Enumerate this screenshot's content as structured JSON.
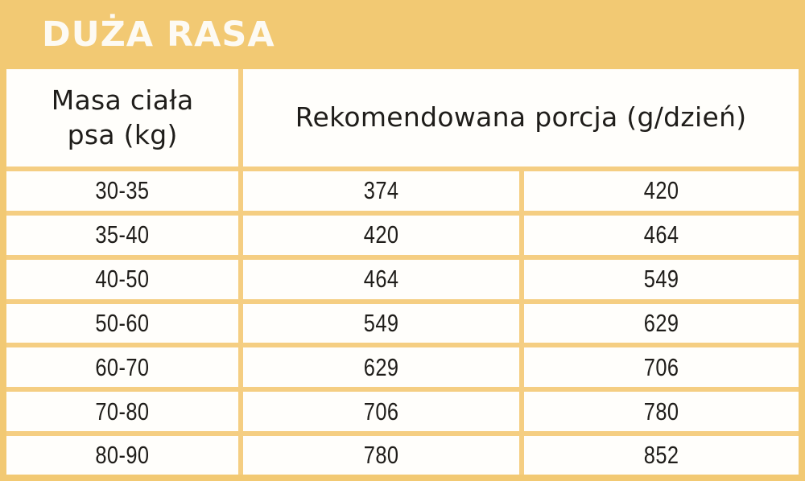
{
  "title": "DUŻA RASA",
  "colors": {
    "background": "#F2C973",
    "grid_border": "#F5CE82",
    "cell_background": "#FFFEFB",
    "text": "#1F1D1A",
    "title_text": "#FDFAF3"
  },
  "table": {
    "weight_header_line1": "Masa ciała",
    "weight_header_line2": "psa (kg)",
    "portion_header": "Rekomendowana porcja (g/dzień)",
    "rows": [
      {
        "weight": "30-35",
        "min": "374",
        "max": "420"
      },
      {
        "weight": "35-40",
        "min": "420",
        "max": "464"
      },
      {
        "weight": "40-50",
        "min": "464",
        "max": "549"
      },
      {
        "weight": "50-60",
        "min": "549",
        "max": "629"
      },
      {
        "weight": "60-70",
        "min": "629",
        "max": "706"
      },
      {
        "weight": "70-80",
        "min": "706",
        "max": "780"
      },
      {
        "weight": "80-90",
        "min": "780",
        "max": "852"
      }
    ]
  },
  "chart_data": {
    "type": "table",
    "title": "DUŻA RASA",
    "columns": [
      "Masa ciała psa (kg)",
      "Rekomendowana porcja (g/dzień)"
    ],
    "portion_header_spans_two_subcolumns": true,
    "rows": [
      [
        "30-35",
        374,
        420
      ],
      [
        "35-40",
        420,
        464
      ],
      [
        "40-50",
        464,
        549
      ],
      [
        "50-60",
        549,
        629
      ],
      [
        "60-70",
        629,
        706
      ],
      [
        "70-80",
        706,
        780
      ],
      [
        "80-90",
        780,
        852
      ]
    ]
  }
}
